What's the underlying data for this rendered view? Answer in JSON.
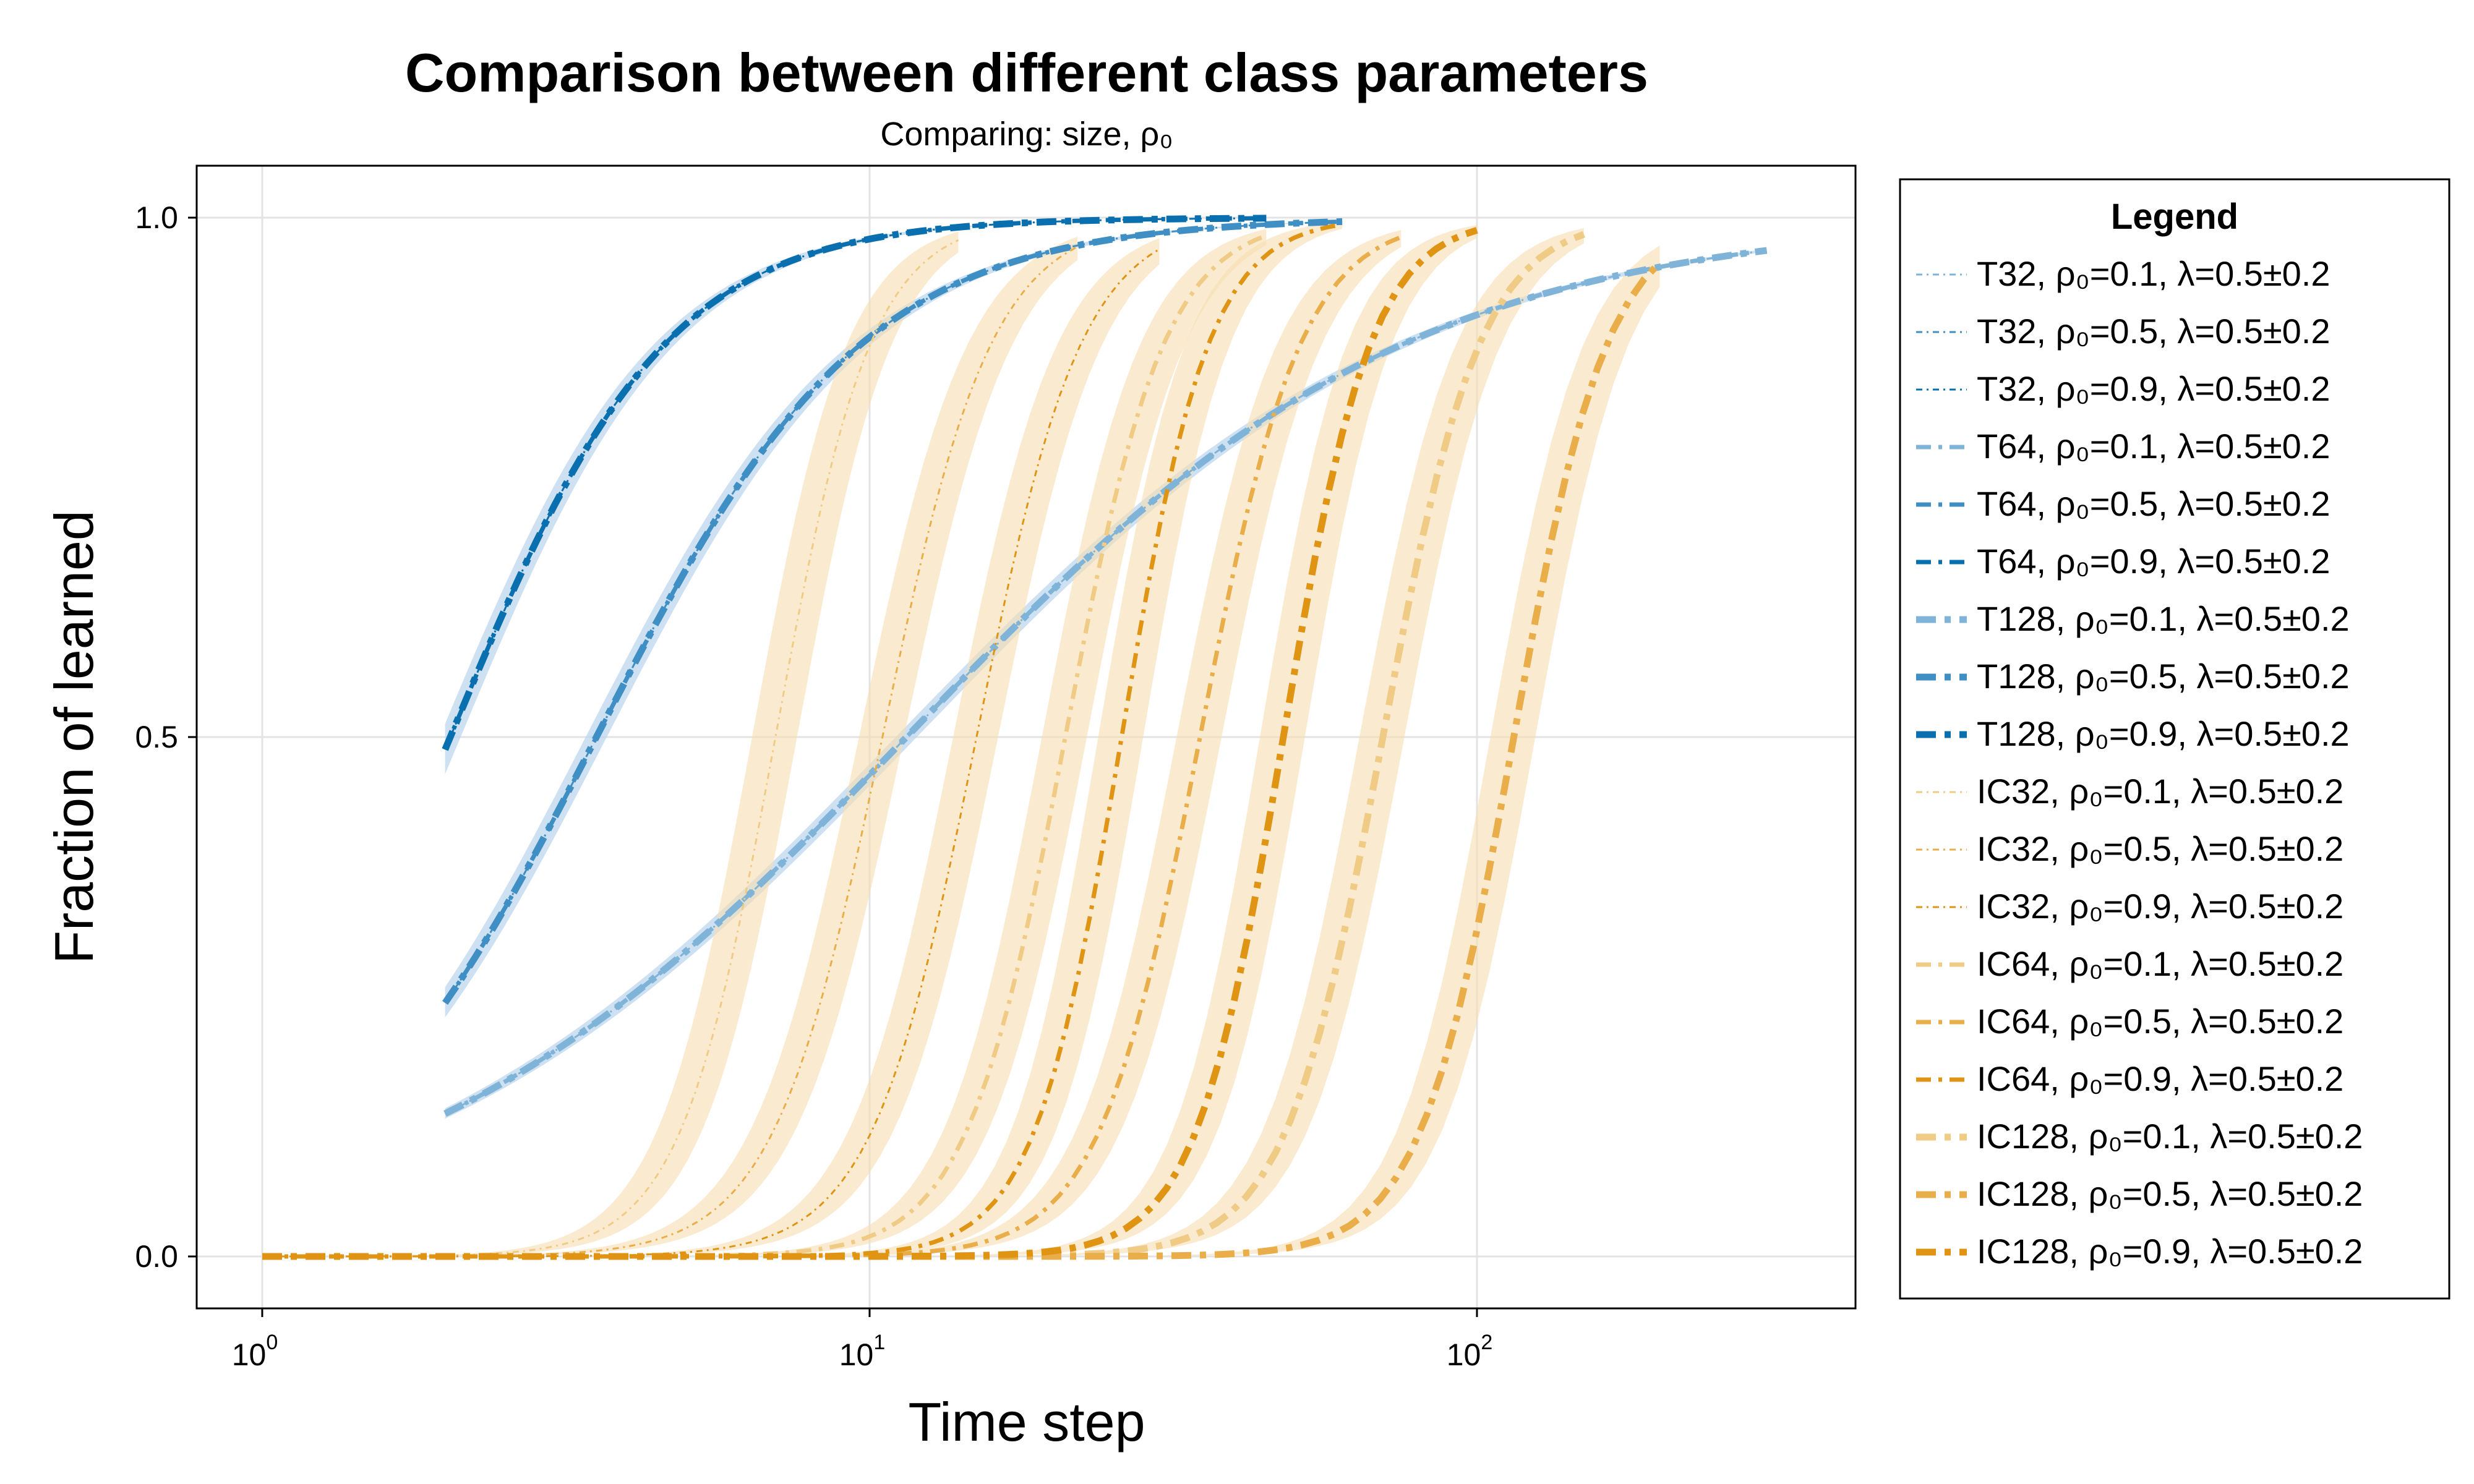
{
  "chart_data": {
    "type": "line",
    "title": "Comparison between different class parameters",
    "subtitle": "Comparing: size, ρ₀",
    "xlabel": "Time step",
    "ylabel": "Fraction of learned",
    "xscale": "log10",
    "xlim": [
      0.78,
      420
    ],
    "ylim": [
      -0.05,
      1.05
    ],
    "xticks": [
      {
        "value": 1,
        "base": "10",
        "exp": "0"
      },
      {
        "value": 10,
        "base": "10",
        "exp": "1"
      },
      {
        "value": 100,
        "base": "10",
        "exp": "2"
      }
    ],
    "yticks": [
      {
        "value": 0.0,
        "label": "0.0"
      },
      {
        "value": 0.5,
        "label": "0.5"
      },
      {
        "value": 1.0,
        "label": "1.0"
      }
    ],
    "grid": true,
    "legend": {
      "title": "Legend",
      "position": "right"
    },
    "colors": {
      "T": "#0072b2",
      "IC": "#e69f00",
      "band_T": "#b9d4ec",
      "band_IC": "#f6ddb0"
    },
    "series": [
      {
        "name": "T32, ρ₀=0.1, λ=0.5±0.2",
        "family": "T",
        "size": 32,
        "rho": 0.1,
        "x_start": 2,
        "x_mid": 11.5,
        "slope": 1.05,
        "y_end_x": 300
      },
      {
        "name": "T32, ρ₀=0.5, λ=0.5±0.2",
        "family": "T",
        "size": 32,
        "rho": 0.5,
        "x_start": 2,
        "x_mid": 3.55,
        "slope": 1.97,
        "y_end_x": 60
      },
      {
        "name": "T32, ρ₀=0.9, λ=0.5±0.2",
        "family": "T",
        "size": 32,
        "rho": 0.9,
        "x_start": 2,
        "x_mid": 2.04,
        "slope": 2.43,
        "y_end_x": 45
      },
      {
        "name": "T64, ρ₀=0.1, λ=0.5±0.2",
        "family": "T",
        "size": 64,
        "rho": 0.1,
        "x_start": 2,
        "x_mid": 11.5,
        "slope": 1.05,
        "y_end_x": 300
      },
      {
        "name": "T64, ρ₀=0.5, λ=0.5±0.2",
        "family": "T",
        "size": 64,
        "rho": 0.5,
        "x_start": 2,
        "x_mid": 3.55,
        "slope": 1.97,
        "y_end_x": 60
      },
      {
        "name": "T64, ρ₀=0.9, λ=0.5±0.2",
        "family": "T",
        "size": 64,
        "rho": 0.9,
        "x_start": 2,
        "x_mid": 2.04,
        "slope": 2.43,
        "y_end_x": 45
      },
      {
        "name": "T128, ρ₀=0.1, λ=0.5±0.2",
        "family": "T",
        "size": 128,
        "rho": 0.1,
        "x_start": 2,
        "x_mid": 11.5,
        "slope": 1.05,
        "y_end_x": 300
      },
      {
        "name": "T128, ρ₀=0.5, λ=0.5±0.2",
        "family": "T",
        "size": 128,
        "rho": 0.5,
        "x_start": 2,
        "x_mid": 3.55,
        "slope": 1.97,
        "y_end_x": 60
      },
      {
        "name": "T128, ρ₀=0.9, λ=0.5±0.2",
        "family": "T",
        "size": 128,
        "rho": 0.9,
        "x_start": 2,
        "x_mid": 2.04,
        "slope": 2.43,
        "y_end_x": 45
      },
      {
        "name": "IC32, ρ₀=0.1, λ=0.5±0.2",
        "family": "IC",
        "size": 32,
        "rho": 0.1,
        "x_start": 1,
        "x_mid": 7.0,
        "slope": 5.5,
        "y_end_x": 14
      },
      {
        "name": "IC32, ρ₀=0.5, λ=0.5±0.2",
        "family": "IC",
        "size": 32,
        "rho": 0.5,
        "x_start": 1,
        "x_mid": 10.5,
        "slope": 4.8,
        "y_end_x": 22
      },
      {
        "name": "IC32, ρ₀=0.9, λ=0.5±0.2",
        "family": "IC",
        "size": 32,
        "rho": 0.9,
        "x_start": 1,
        "x_mid": 15.0,
        "slope": 5.0,
        "y_end_x": 30
      },
      {
        "name": "IC64, ρ₀=0.1, λ=0.5±0.2",
        "family": "IC",
        "size": 64,
        "rho": 0.1,
        "x_start": 1,
        "x_mid": 21.0,
        "slope": 5.3,
        "y_end_x": 45
      },
      {
        "name": "IC64, ρ₀=0.5, λ=0.5±0.2",
        "family": "IC",
        "size": 64,
        "rho": 0.5,
        "x_start": 1,
        "x_mid": 35.0,
        "slope": 5.2,
        "y_end_x": 75
      },
      {
        "name": "IC64, ρ₀=0.9, λ=0.5±0.2",
        "family": "IC",
        "size": 64,
        "rho": 0.9,
        "x_start": 1,
        "x_mid": 26.0,
        "slope": 6.0,
        "y_end_x": 60
      },
      {
        "name": "IC128, ρ₀=0.1, λ=0.5±0.2",
        "family": "IC",
        "size": 128,
        "rho": 0.1,
        "x_start": 1,
        "x_mid": 70.0,
        "slope": 5.4,
        "y_end_x": 150
      },
      {
        "name": "IC128, ρ₀=0.5, λ=0.5±0.2",
        "family": "IC",
        "size": 128,
        "rho": 0.5,
        "x_start": 1,
        "x_mid": 115.0,
        "slope": 5.6,
        "y_end_x": 200
      },
      {
        "name": "IC128, ρ₀=0.9, λ=0.5±0.2",
        "family": "IC",
        "size": 128,
        "rho": 0.9,
        "x_start": 1,
        "x_mid": 48.0,
        "slope": 6.0,
        "y_end_x": 100
      }
    ]
  }
}
